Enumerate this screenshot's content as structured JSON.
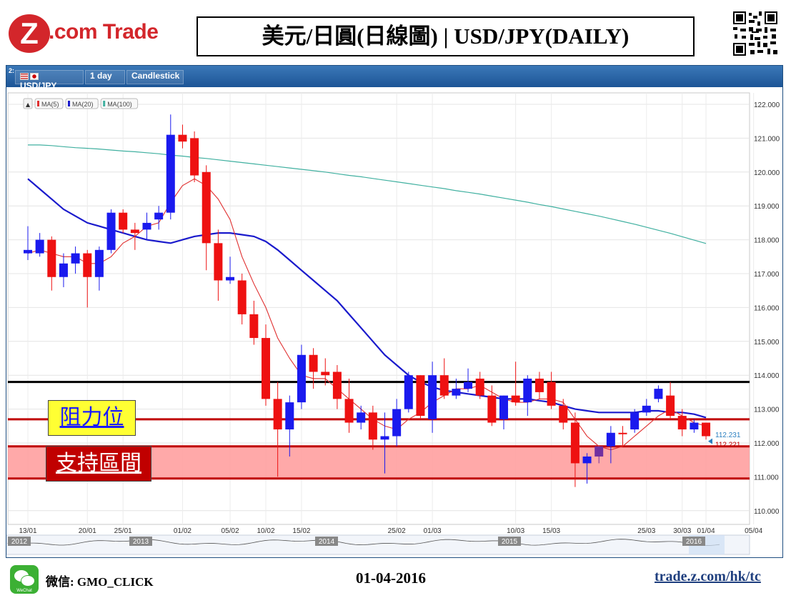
{
  "header": {
    "logo_mark": "Z",
    "logo_text": ".com Trade",
    "title": "美元/日圓(日線圖) | USD/JPY(DAILY)"
  },
  "toolbar": {
    "panel_index": "2:",
    "symbol": "USD/JPY",
    "interval": "1 day",
    "chart_style": "Candlestick"
  },
  "legend": {
    "collapse": "▲",
    "items": [
      {
        "label": "MA(5)",
        "color": "#e03030"
      },
      {
        "label": "MA(20)",
        "color": "#1a1acc"
      },
      {
        "label": "MA(100)",
        "color": "#40b0a0"
      }
    ]
  },
  "annotations": {
    "resistance_label": "阻力位",
    "support_label": "支持區間",
    "price_tag_1": "112.231",
    "price_tag_2": "112.221"
  },
  "footer": {
    "wechat_icon_label": "WeChat",
    "wechat_id": "微信: GMO_CLICK",
    "date": "01-04-2016",
    "url": "trade.z.com/hk/tc"
  },
  "colors": {
    "up": "#1a1aee",
    "down": "#ee1111",
    "doji": "#7030a0",
    "support_fill": "#ffa0a0",
    "resistance_line": "#c00000",
    "key_line": "#000000"
  },
  "chart_data": {
    "type": "candlestick",
    "symbol": "USD/JPY",
    "ylim": [
      109.7,
      122.3
    ],
    "y_ticks": [
      "122.000",
      "121.000",
      "120.000",
      "119.000",
      "118.000",
      "117.000",
      "116.000",
      "115.000",
      "114.000",
      "113.000",
      "112.000",
      "111.000",
      "110.000"
    ],
    "x_ticks": [
      {
        "label": "13/01",
        "i": 0
      },
      {
        "label": "20/01",
        "i": 5
      },
      {
        "label": "25/01",
        "i": 8
      },
      {
        "label": "01/02",
        "i": 13
      },
      {
        "label": "05/02",
        "i": 17
      },
      {
        "label": "10/02",
        "i": 20
      },
      {
        "label": "15/02",
        "i": 23
      },
      {
        "label": "25/02",
        "i": 31
      },
      {
        "label": "01/03",
        "i": 34
      },
      {
        "label": "10/03",
        "i": 41
      },
      {
        "label": "15/03",
        "i": 44
      },
      {
        "label": "25/03",
        "i": 52
      },
      {
        "label": "30/03",
        "i": 55
      },
      {
        "label": "01/04",
        "i": 57
      },
      {
        "label": "05/04",
        "i": 61
      }
    ],
    "candles": [
      {
        "o": 117.6,
        "h": 118.4,
        "l": 117.4,
        "c": 117.7
      },
      {
        "o": 117.6,
        "h": 118.2,
        "l": 117.5,
        "c": 118.0
      },
      {
        "o": 118.0,
        "h": 118.1,
        "l": 116.5,
        "c": 116.9
      },
      {
        "o": 116.9,
        "h": 117.6,
        "l": 116.6,
        "c": 117.3
      },
      {
        "o": 117.3,
        "h": 117.8,
        "l": 117.0,
        "c": 117.6
      },
      {
        "o": 117.6,
        "h": 117.7,
        "l": 116.0,
        "c": 116.9
      },
      {
        "o": 116.9,
        "h": 117.8,
        "l": 116.5,
        "c": 117.7
      },
      {
        "o": 117.7,
        "h": 118.9,
        "l": 117.6,
        "c": 118.8
      },
      {
        "o": 118.8,
        "h": 118.9,
        "l": 118.2,
        "c": 118.3
      },
      {
        "o": 118.3,
        "h": 118.5,
        "l": 117.7,
        "c": 118.2
      },
      {
        "o": 118.3,
        "h": 118.8,
        "l": 118.0,
        "c": 118.5
      },
      {
        "o": 118.6,
        "h": 119.0,
        "l": 118.3,
        "c": 118.8
      },
      {
        "o": 118.8,
        "h": 121.7,
        "l": 118.6,
        "c": 121.1
      },
      {
        "o": 121.1,
        "h": 121.4,
        "l": 120.7,
        "c": 120.9
      },
      {
        "o": 121.0,
        "h": 121.2,
        "l": 119.7,
        "c": 119.9
      },
      {
        "o": 120.0,
        "h": 120.2,
        "l": 117.1,
        "c": 117.9
      },
      {
        "o": 117.9,
        "h": 118.3,
        "l": 116.2,
        "c": 116.8
      },
      {
        "o": 116.8,
        "h": 117.5,
        "l": 116.7,
        "c": 116.9
      },
      {
        "o": 116.8,
        "h": 117.0,
        "l": 115.5,
        "c": 115.8
      },
      {
        "o": 115.8,
        "h": 116.2,
        "l": 114.9,
        "c": 115.1
      },
      {
        "o": 115.1,
        "h": 115.5,
        "l": 113.1,
        "c": 113.3
      },
      {
        "o": 113.3,
        "h": 113.8,
        "l": 111.0,
        "c": 112.4
      },
      {
        "o": 112.4,
        "h": 113.4,
        "l": 111.6,
        "c": 113.2
      },
      {
        "o": 113.2,
        "h": 114.9,
        "l": 113.0,
        "c": 114.6
      },
      {
        "o": 114.6,
        "h": 114.8,
        "l": 113.6,
        "c": 114.1
      },
      {
        "o": 114.1,
        "h": 114.5,
        "l": 113.7,
        "c": 114.0
      },
      {
        "o": 114.1,
        "h": 114.3,
        "l": 113.0,
        "c": 113.3
      },
      {
        "o": 113.3,
        "h": 113.9,
        "l": 112.3,
        "c": 112.6
      },
      {
        "o": 112.6,
        "h": 113.1,
        "l": 112.4,
        "c": 112.9
      },
      {
        "o": 112.9,
        "h": 113.1,
        "l": 111.8,
        "c": 112.1
      },
      {
        "o": 112.1,
        "h": 112.9,
        "l": 111.1,
        "c": 112.2
      },
      {
        "o": 112.2,
        "h": 113.3,
        "l": 111.9,
        "c": 113.0
      },
      {
        "o": 113.0,
        "h": 114.1,
        "l": 112.9,
        "c": 114.0
      },
      {
        "o": 114.0,
        "h": 114.0,
        "l": 112.7,
        "c": 112.8
      },
      {
        "o": 112.7,
        "h": 114.4,
        "l": 112.3,
        "c": 114.0
      },
      {
        "o": 114.0,
        "h": 114.5,
        "l": 113.3,
        "c": 113.4
      },
      {
        "o": 113.4,
        "h": 113.9,
        "l": 113.3,
        "c": 113.6
      },
      {
        "o": 113.6,
        "h": 114.2,
        "l": 113.5,
        "c": 113.8
      },
      {
        "o": 113.9,
        "h": 114.1,
        "l": 113.3,
        "c": 113.4
      },
      {
        "o": 113.4,
        "h": 113.7,
        "l": 112.5,
        "c": 112.6
      },
      {
        "o": 112.7,
        "h": 113.4,
        "l": 112.4,
        "c": 113.4
      },
      {
        "o": 113.4,
        "h": 114.4,
        "l": 113.1,
        "c": 113.2
      },
      {
        "o": 113.2,
        "h": 114.0,
        "l": 112.8,
        "c": 113.9
      },
      {
        "o": 113.9,
        "h": 114.1,
        "l": 113.3,
        "c": 113.5
      },
      {
        "o": 113.8,
        "h": 114.1,
        "l": 113.0,
        "c": 113.1
      },
      {
        "o": 113.1,
        "h": 113.3,
        "l": 112.4,
        "c": 112.6
      },
      {
        "o": 112.6,
        "h": 112.9,
        "l": 110.7,
        "c": 111.4
      },
      {
        "o": 111.4,
        "h": 111.7,
        "l": 110.8,
        "c": 111.6
      },
      {
        "o": 111.6,
        "h": 111.9,
        "l": 111.4,
        "c": 111.9
      },
      {
        "o": 111.9,
        "h": 112.5,
        "l": 111.4,
        "c": 112.3
      },
      {
        "o": 112.3,
        "h": 112.5,
        "l": 111.9,
        "c": 112.3
      },
      {
        "o": 112.4,
        "h": 113.0,
        "l": 112.3,
        "c": 112.9
      },
      {
        "o": 112.9,
        "h": 113.3,
        "l": 112.8,
        "c": 113.1
      },
      {
        "o": 113.3,
        "h": 113.7,
        "l": 113.2,
        "c": 113.6
      },
      {
        "o": 113.4,
        "h": 113.8,
        "l": 112.7,
        "c": 112.8
      },
      {
        "o": 112.8,
        "h": 113.0,
        "l": 112.2,
        "c": 112.4
      },
      {
        "o": 112.4,
        "h": 112.7,
        "l": 112.3,
        "c": 112.6
      },
      {
        "o": 112.6,
        "h": 112.6,
        "l": 112.1,
        "c": 112.2
      }
    ],
    "ma5": [
      117.6,
      117.7,
      117.6,
      117.5,
      117.5,
      117.3,
      117.3,
      117.5,
      117.9,
      118.1,
      118.4,
      118.5,
      119.1,
      119.6,
      119.8,
      119.6,
      119.2,
      118.6,
      117.5,
      116.7,
      116.0,
      115.1,
      114.5,
      114.0,
      113.9,
      113.9,
      113.6,
      113.3,
      113.0,
      112.7,
      112.5,
      112.4,
      112.7,
      112.9,
      113.2,
      113.4,
      113.6,
      113.6,
      113.7,
      113.5,
      113.3,
      113.2,
      113.2,
      113.3,
      113.3,
      113.2,
      112.7,
      112.2,
      111.9,
      111.8,
      111.9,
      112.2,
      112.5,
      112.8,
      113.0,
      112.8,
      112.6,
      112.5
    ],
    "ma20": [
      119.8,
      119.5,
      119.2,
      118.9,
      118.7,
      118.5,
      118.4,
      118.3,
      118.2,
      118.1,
      118.0,
      117.95,
      117.9,
      118.0,
      118.1,
      118.15,
      118.2,
      118.2,
      118.15,
      118.1,
      117.95,
      117.7,
      117.4,
      117.1,
      116.8,
      116.5,
      116.2,
      115.8,
      115.4,
      115.0,
      114.6,
      114.3,
      114.0,
      113.8,
      113.65,
      113.55,
      113.5,
      113.45,
      113.4,
      113.35,
      113.3,
      113.3,
      113.3,
      113.25,
      113.2,
      113.1,
      113.0,
      112.95,
      112.9,
      112.9,
      112.9,
      112.9,
      112.95,
      112.95,
      112.9,
      112.9,
      112.85,
      112.75
    ],
    "ma100": [
      120.8,
      120.8,
      120.78,
      120.75,
      120.72,
      120.7,
      120.68,
      120.65,
      120.62,
      120.6,
      120.57,
      120.54,
      120.5,
      120.47,
      120.43,
      120.4,
      120.36,
      120.32,
      120.28,
      120.24,
      120.2,
      120.16,
      120.12,
      120.08,
      120.04,
      120.0,
      119.95,
      119.9,
      119.86,
      119.81,
      119.76,
      119.71,
      119.66,
      119.61,
      119.56,
      119.51,
      119.45,
      119.4,
      119.35,
      119.29,
      119.23,
      119.17,
      119.11,
      119.04,
      118.98,
      118.91,
      118.84,
      118.77,
      118.7,
      118.62,
      118.54,
      118.46,
      118.37,
      118.28,
      118.19,
      118.09,
      117.99,
      117.89
    ],
    "horizontal_lines": [
      {
        "price": 113.8,
        "color": "#000000"
      },
      {
        "price": 112.7,
        "color": "#c00000"
      },
      {
        "price": 111.9,
        "color": "#c00000"
      },
      {
        "price": 110.95,
        "color": "#c00000"
      }
    ],
    "support_zone": [
      110.95,
      111.9
    ],
    "navigator_years": [
      "2012",
      "2013",
      "2014",
      "2015",
      "2016"
    ]
  }
}
